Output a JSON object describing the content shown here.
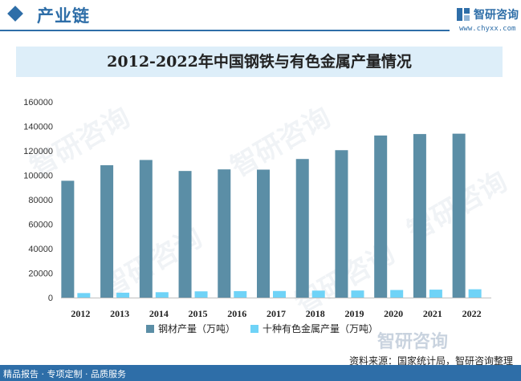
{
  "header": {
    "section_title": "产业链",
    "brand_name": "智研咨询",
    "brand_url": "www.chyxx.com"
  },
  "watermark": "智研咨询",
  "chart_data": {
    "type": "bar",
    "title": "2012-2022年中国钢铁与有色金属产量情况",
    "categories": [
      "2012",
      "2013",
      "2014",
      "2015",
      "2016",
      "2017",
      "2018",
      "2019",
      "2020",
      "2021",
      "2022"
    ],
    "series": [
      {
        "name": "钢材产量（万吨）",
        "color": "#5b8ea6",
        "values": [
          95500,
          108200,
          112500,
          103500,
          104800,
          104600,
          113300,
          120500,
          132500,
          133700,
          134000
        ]
      },
      {
        "name": "十种有色金属产量（万吨）",
        "color": "#6fd3f7",
        "values": [
          3700,
          4000,
          4400,
          5100,
          5300,
          5400,
          5700,
          5800,
          6200,
          6500,
          6800
        ]
      }
    ],
    "yticks": [
      "0",
      "20000",
      "40000",
      "60000",
      "80000",
      "100000",
      "120000",
      "140000",
      "160000"
    ],
    "ylim": [
      0,
      160000
    ],
    "legend_position": "bottom",
    "grid": false
  },
  "footer": {
    "source": "资料来源：国家统计局，智研咨询整理",
    "tagline": "精品报告 · 专项定制 · 品质服务"
  }
}
